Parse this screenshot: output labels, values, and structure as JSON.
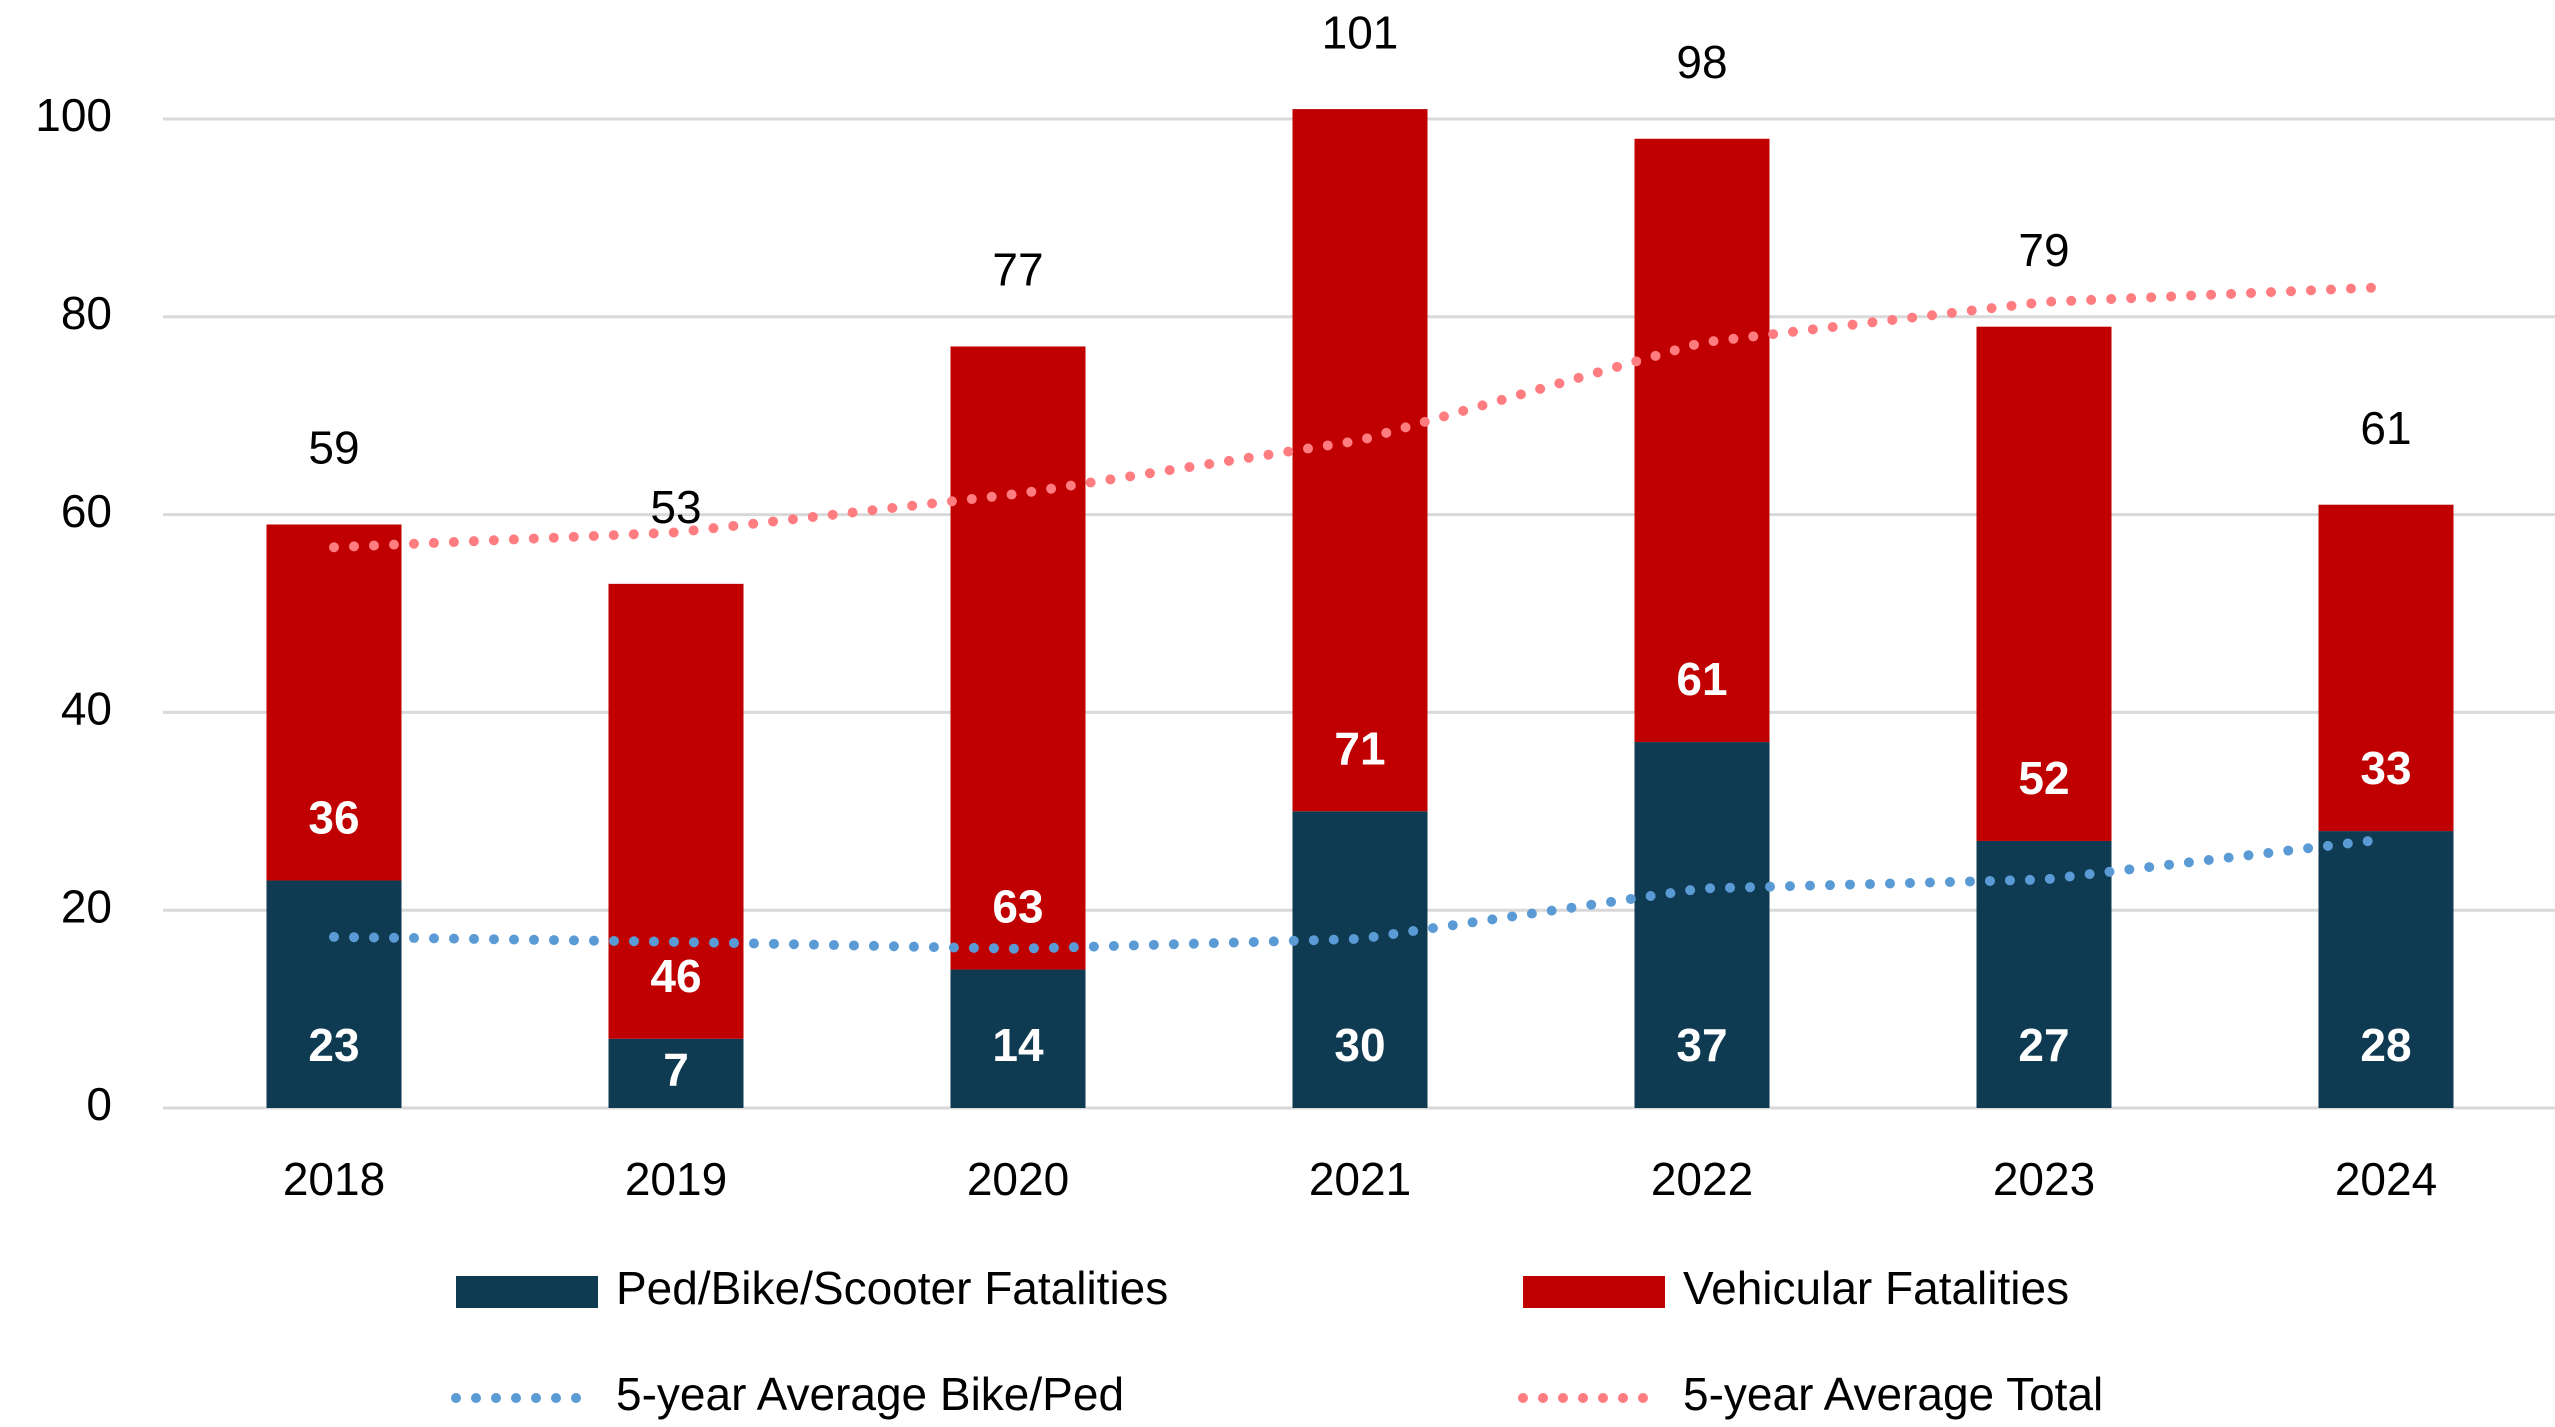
{
  "chart_data": {
    "type": "stacked_bar_line",
    "categories": [
      "2018",
      "2019",
      "2020",
      "2021",
      "2022",
      "2023",
      "2024"
    ],
    "series": [
      {
        "name": "Ped/Bike/Scooter Fatalities",
        "color": "#0e3a52",
        "kind": "bar",
        "values": [
          23,
          7,
          14,
          30,
          37,
          27,
          28
        ]
      },
      {
        "name": "Vehicular Fatalities",
        "color": "#c00000",
        "kind": "bar",
        "values": [
          36,
          46,
          63,
          71,
          61,
          52,
          33
        ]
      },
      {
        "name": "5-year Average Bike/Ped",
        "color": "#5b9bd5",
        "kind": "line",
        "values": [
          17.3,
          16.8,
          16.1,
          17.1,
          22.2,
          23.1,
          27.2
        ]
      },
      {
        "name": "5-year Average Total",
        "color": "#ff7c80",
        "kind": "line",
        "values": [
          56.7,
          58.2,
          62.1,
          67.5,
          77.4,
          81.5,
          83.0
        ]
      }
    ],
    "totals": [
      59,
      53,
      77,
      101,
      98,
      79,
      61
    ],
    "ylim": [
      0,
      100
    ],
    "yticks": [
      0,
      20,
      40,
      60,
      80,
      100
    ],
    "grid": true,
    "legend": "bottom"
  }
}
